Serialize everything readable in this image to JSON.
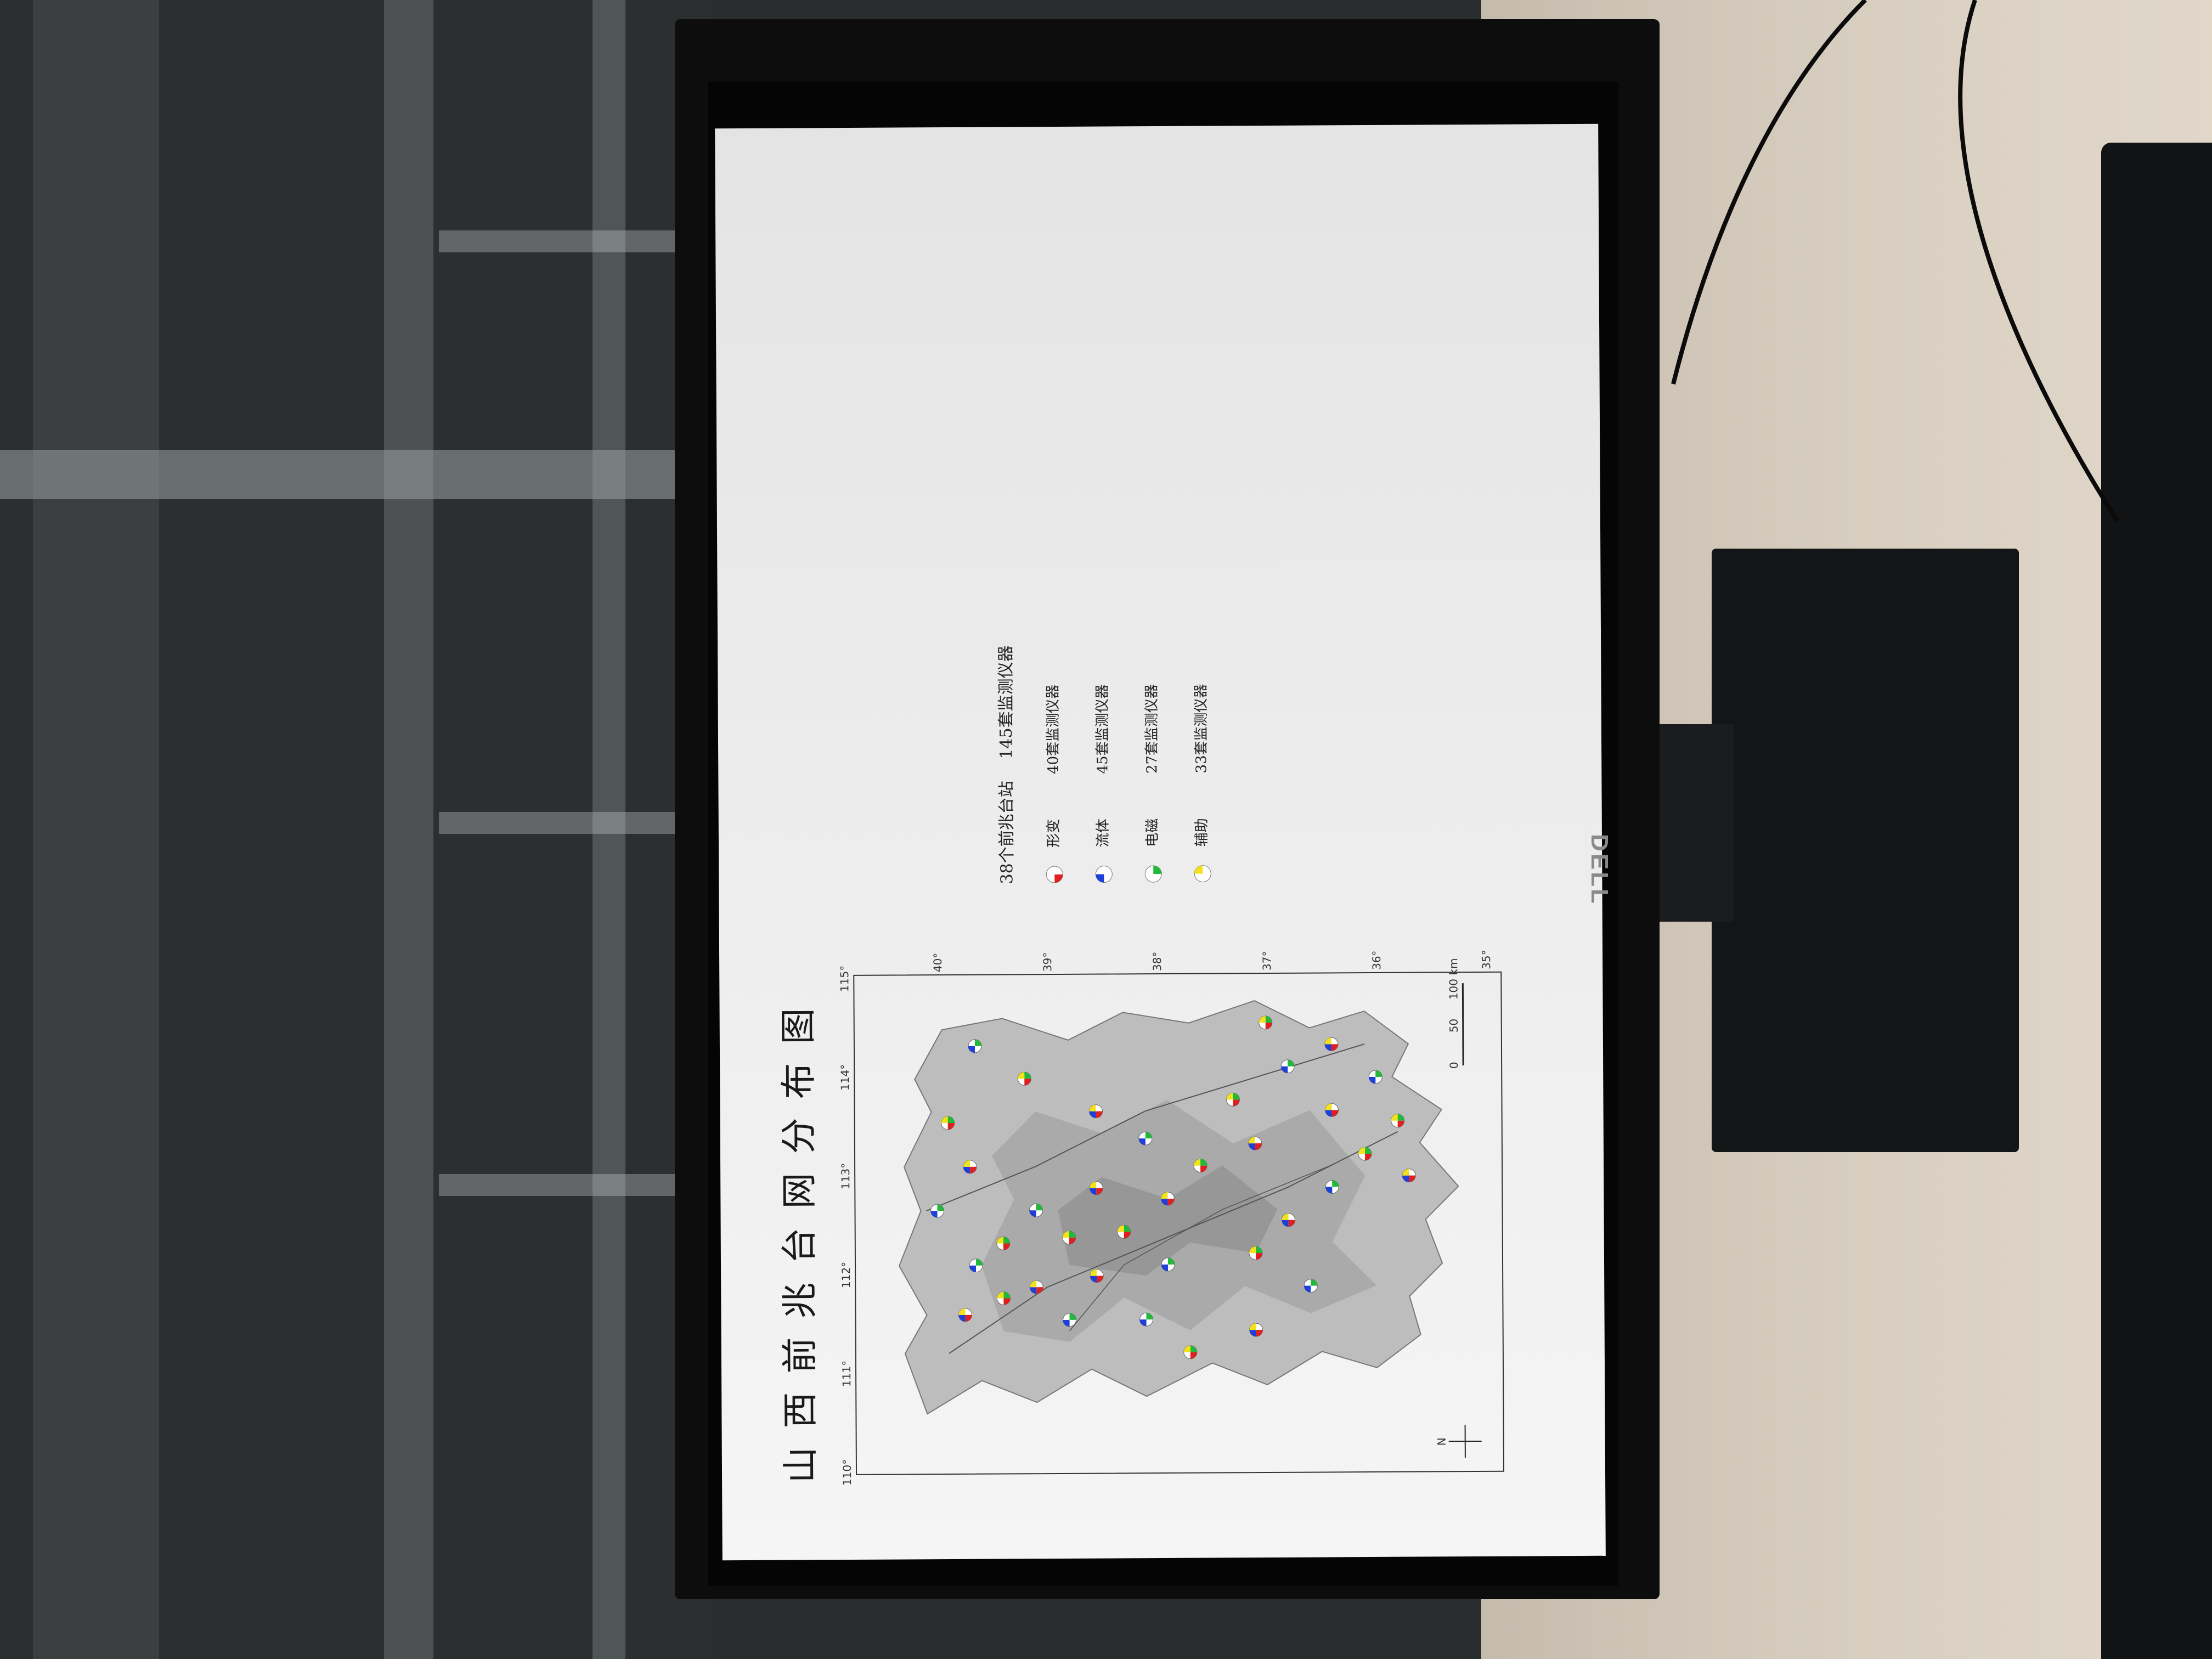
{
  "map": {
    "title": "山西前兆台网分布图",
    "lon_ticks": [
      "110°",
      "111°",
      "112°",
      "113°",
      "114°",
      "115°"
    ],
    "lat_ticks": [
      "35°",
      "36°",
      "37°",
      "38°",
      "39°",
      "40°"
    ],
    "scale_ticks": [
      "0",
      "50",
      "100 km"
    ],
    "north_label": "N"
  },
  "legend": {
    "header": "38个前兆台站",
    "header_count": "145套监测仪器",
    "items": [
      {
        "label": "形变",
        "count": "40套监测仪器",
        "color": "#e02020",
        "icon": "pie-quadrant-red"
      },
      {
        "label": "流体",
        "count": "45套监测仪器",
        "color": "#1e3fd8",
        "icon": "pie-quadrant-blue"
      },
      {
        "label": "电磁",
        "count": "27套监测仪器",
        "color": "#22b83a",
        "icon": "pie-quadrant-green"
      },
      {
        "label": "辅助",
        "count": "33套监测仪器",
        "color": "#f2e21a",
        "icon": "pie-quadrant-yellow"
      }
    ]
  },
  "monitor": {
    "brand": "DELL"
  }
}
